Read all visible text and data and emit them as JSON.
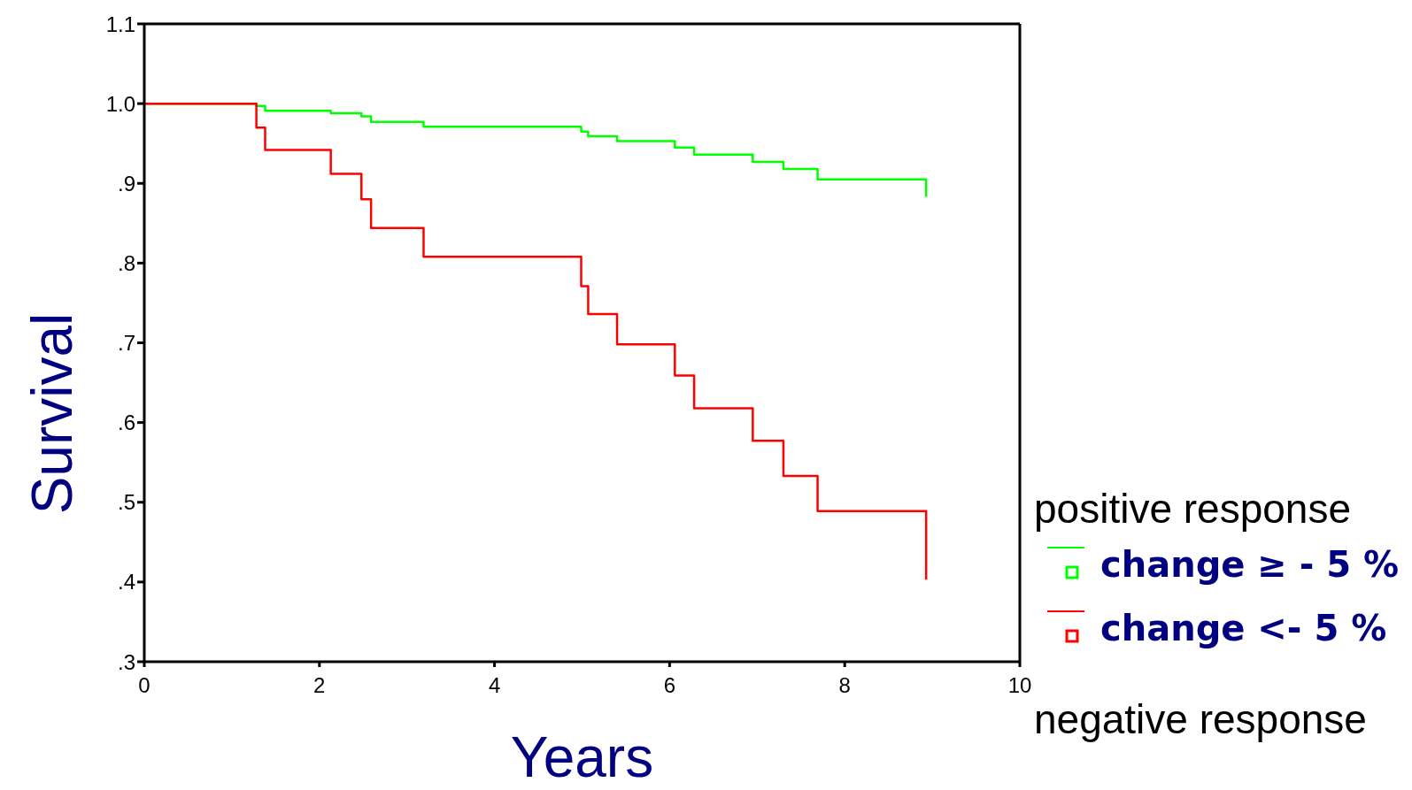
{
  "chart_data": {
    "type": "step",
    "xlabel": "Years",
    "ylabel": "Survival",
    "legend_title": "positive response",
    "annotations": [
      "negative response"
    ],
    "xlim": [
      0,
      10
    ],
    "xticks": [
      0,
      2,
      4,
      6,
      8,
      10
    ],
    "ylim": [
      0.3,
      1.1
    ],
    "yticks": [
      {
        "value": 0.3,
        "label": ".3"
      },
      {
        "value": 0.4,
        "label": ".4"
      },
      {
        "value": 0.5,
        "label": ".5"
      },
      {
        "value": 0.6,
        "label": ".6"
      },
      {
        "value": 0.7,
        "label": ".7"
      },
      {
        "value": 0.8,
        "label": ".8"
      },
      {
        "value": 0.9,
        "label": ".9"
      },
      {
        "value": 1.0,
        "label": "1.0"
      },
      {
        "value": 1.1,
        "label": "1.1"
      }
    ],
    "legend": "right",
    "series": [
      {
        "name": "change ≥ - 5 %",
        "color": "#00ff00",
        "x": [
          0,
          1.28,
          1.38,
          2.13,
          2.48,
          2.59,
          3.19,
          4.99,
          5.07,
          5.4,
          6.06,
          6.28,
          6.95,
          7.3,
          7.69,
          8.93,
          8.93
        ],
        "values": [
          1.0,
          0.997,
          0.991,
          0.988,
          0.984,
          0.977,
          0.971,
          0.965,
          0.959,
          0.953,
          0.945,
          0.936,
          0.927,
          0.918,
          0.905,
          0.905,
          0.883
        ]
      },
      {
        "name": "change <- 5 %",
        "color": "#ff0000",
        "x": [
          0,
          1.28,
          1.38,
          2.13,
          2.48,
          2.59,
          3.19,
          4.99,
          5.07,
          5.4,
          6.06,
          6.28,
          6.95,
          7.3,
          7.69,
          8.93,
          8.93
        ],
        "values": [
          1.0,
          0.97,
          0.942,
          0.912,
          0.88,
          0.844,
          0.808,
          0.771,
          0.736,
          0.698,
          0.659,
          0.618,
          0.577,
          0.533,
          0.489,
          0.489,
          0.403
        ]
      }
    ]
  }
}
